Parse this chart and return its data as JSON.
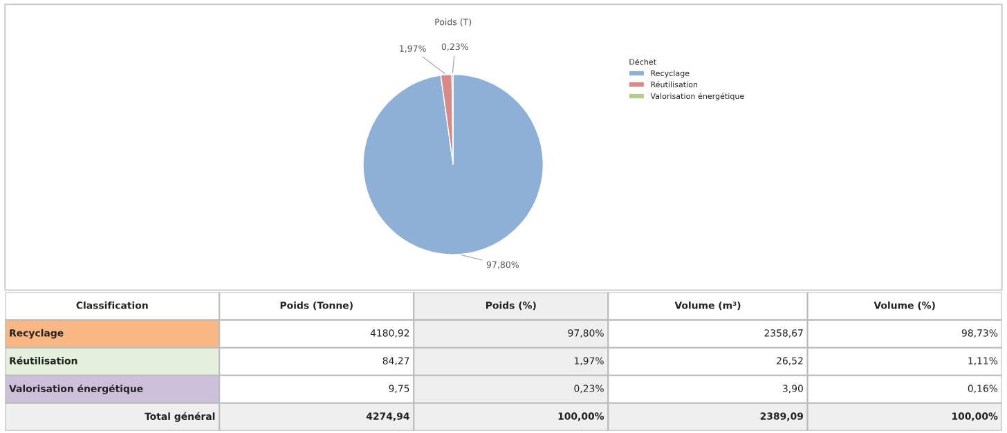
{
  "chart_data": [
    {
      "type": "pie",
      "title": "Poids (T)",
      "legend_title": "Déchet",
      "legend": "top right",
      "categories": [
        "Recyclage",
        "Réutilisation",
        "Valorisation énergétique"
      ],
      "values": [
        97.8,
        1.97,
        0.23
      ],
      "colors": [
        "#8eb0d6",
        "#d98a88",
        "#b5cc8a"
      ],
      "value_labels": [
        "97,80%",
        "1,97%",
        "0,23%"
      ]
    },
    {
      "type": "other",
      "categories": [
        "Classification",
        "Poids (Tonne)",
        "Poids (%)",
        "Volume (m³)",
        "Volume (%)"
      ],
      "annotations": [
        "Recyclage",
        "4180,92",
        "97,80%",
        "2358,67",
        "98,73%",
        "Réutilisation",
        "84,27",
        "1,97%",
        "26,52",
        "1,11%",
        "Valorisation énergétique",
        "9,75",
        "0,23%",
        "3,90",
        "0,16%",
        "Total général",
        "4274,94",
        "100,00%",
        "2389,09",
        "100,00%"
      ]
    }
  ]
}
